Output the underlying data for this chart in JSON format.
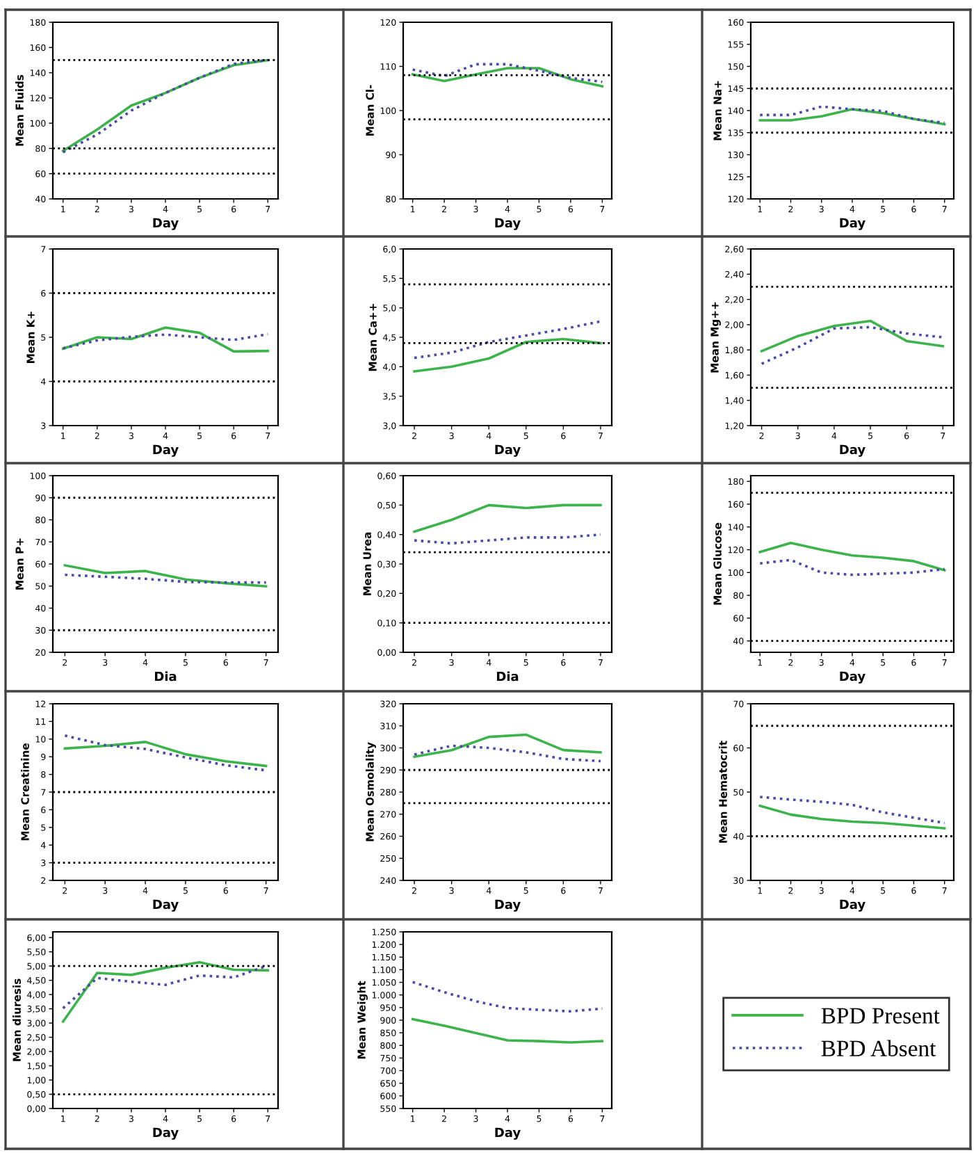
{
  "chart_data": [
    {
      "type": "line",
      "ylabel": "Mean Fluids",
      "xlabel": "Day",
      "x": [
        1,
        2,
        3,
        4,
        5,
        6,
        7
      ],
      "xlim": [
        0.7,
        7.3
      ],
      "xticks": [
        1,
        2,
        3,
        4,
        5,
        6,
        7
      ],
      "ylim": [
        40,
        180
      ],
      "yticks": [
        40,
        60,
        80,
        100,
        120,
        140,
        160,
        180
      ],
      "series": [
        {
          "name": "BPD Present",
          "color": "#3cb44b",
          "line_style": "solid",
          "values": [
            78,
            95,
            114,
            124,
            136,
            146,
            150
          ]
        },
        {
          "name": "BPD Absent",
          "color": "#4a4aa8",
          "line_style": "dotted",
          "values": [
            77,
            91,
            110,
            124,
            136,
            147,
            150
          ]
        }
      ],
      "ref_lines": [
        {
          "axis": "y",
          "value": 150,
          "line_style": "dotted",
          "color": "#000000"
        },
        {
          "axis": "y",
          "value": 80,
          "line_style": "dotted",
          "color": "#000000"
        },
        {
          "axis": "y",
          "value": 60,
          "line_style": "dotted",
          "color": "#000000"
        }
      ],
      "legend": "bottom right"
    },
    {
      "type": "line",
      "ylabel": "Mean Cl-",
      "xlabel": "Day",
      "x": [
        1,
        2,
        3,
        4,
        5,
        6,
        7
      ],
      "xlim": [
        0.7,
        7.3
      ],
      "xticks": [
        1,
        2,
        3,
        4,
        5,
        6,
        7
      ],
      "ylim": [
        80,
        120
      ],
      "yticks": [
        80,
        90,
        100,
        110,
        120
      ],
      "series": [
        {
          "color": "#3cb44b",
          "line_style": "solid",
          "values": [
            108.2,
            106.7,
            108.2,
            109.6,
            109.6,
            107.1,
            105.5
          ]
        },
        {
          "color": "#4a4aa8",
          "line_style": "dotted",
          "values": [
            109.3,
            107.8,
            110.5,
            110.5,
            109,
            107.4,
            106.5
          ]
        }
      ],
      "ref_lines": [
        {
          "axis": "y",
          "value": 108,
          "line_style": "dotted",
          "color": "#000000"
        },
        {
          "axis": "y",
          "value": 98,
          "line_style": "dotted",
          "color": "#000000"
        }
      ]
    },
    {
      "type": "line",
      "ylabel": "Mean Na+",
      "xlabel": "Day",
      "x": [
        1,
        2,
        3,
        4,
        5,
        6,
        7
      ],
      "xlim": [
        0.7,
        7.3
      ],
      "xticks": [
        1,
        2,
        3,
        4,
        5,
        6,
        7
      ],
      "ylim": [
        120,
        160
      ],
      "yticks": [
        120,
        125,
        130,
        135,
        140,
        145,
        150,
        155,
        160
      ],
      "series": [
        {
          "color": "#3cb44b",
          "line_style": "solid",
          "values": [
            137.8,
            137.8,
            138.7,
            140.3,
            139.4,
            138.1,
            136.9
          ]
        },
        {
          "color": "#4a4aa8",
          "line_style": "dotted",
          "values": [
            139,
            139,
            140.9,
            140.3,
            139.9,
            138.1,
            137.2
          ]
        }
      ],
      "ref_lines": [
        {
          "axis": "y",
          "value": 145,
          "line_style": "dotted",
          "color": "#000000"
        },
        {
          "axis": "y",
          "value": 135,
          "line_style": "dotted",
          "color": "#000000"
        }
      ]
    },
    {
      "type": "line",
      "ylabel": "Mean K+",
      "xlabel": "Day",
      "x": [
        1,
        2,
        3,
        4,
        5,
        6,
        7
      ],
      "xlim": [
        0.7,
        7.3
      ],
      "xticks": [
        1,
        2,
        3,
        4,
        5,
        6,
        7
      ],
      "ylim": [
        3,
        7
      ],
      "yticks": [
        3,
        4,
        5,
        6,
        7
      ],
      "series": [
        {
          "color": "#3cb44b",
          "line_style": "solid",
          "values": [
            4.74,
            5.0,
            4.96,
            5.22,
            5.1,
            4.68,
            4.69
          ]
        },
        {
          "color": "#4a4aa8",
          "line_style": "dotted",
          "values": [
            4.75,
            4.93,
            5.01,
            5.06,
            5.0,
            4.94,
            5.07
          ]
        }
      ],
      "ref_lines": [
        {
          "axis": "y",
          "value": 6,
          "line_style": "dotted",
          "color": "#000000"
        },
        {
          "axis": "y",
          "value": 4,
          "line_style": "dotted",
          "color": "#000000"
        }
      ]
    },
    {
      "type": "line",
      "ylabel": "Mean Ca++",
      "xlabel": "Day",
      "x": [
        2,
        3,
        4,
        5,
        6,
        7
      ],
      "xlim": [
        1.7,
        7.3
      ],
      "xticks": [
        2,
        3,
        4,
        5,
        6,
        7
      ],
      "ylim": [
        3,
        6
      ],
      "yticks": [
        {
          "value": 3,
          "label": "3,0"
        },
        {
          "value": 3.5,
          "label": "3,5"
        },
        {
          "value": 4,
          "label": "4,0"
        },
        {
          "value": 4.5,
          "label": "4,5"
        },
        {
          "value": 5,
          "label": "5,0"
        },
        {
          "value": 5.5,
          "label": "5,5"
        },
        {
          "value": 6,
          "label": "6,0"
        }
      ],
      "series": [
        {
          "color": "#3cb44b",
          "line_style": "solid",
          "values": [
            3.92,
            4.0,
            4.14,
            4.42,
            4.47,
            4.4
          ]
        },
        {
          "color": "#4a4aa8",
          "line_style": "dotted",
          "values": [
            4.15,
            4.24,
            4.42,
            4.53,
            4.64,
            4.77
          ]
        }
      ],
      "ref_lines": [
        {
          "axis": "y",
          "value": 5.4,
          "line_style": "dotted",
          "color": "#000000"
        },
        {
          "axis": "y",
          "value": 4.4,
          "line_style": "dotted",
          "color": "#000000"
        }
      ]
    },
    {
      "type": "line",
      "ylabel": "Mean Mg++",
      "xlabel": "Day",
      "x": [
        2,
        3,
        4,
        5,
        6,
        7
      ],
      "xlim": [
        1.7,
        7.3
      ],
      "xticks": [
        2,
        3,
        4,
        5,
        6,
        7
      ],
      "ylim": [
        1.2,
        2.6
      ],
      "yticks": [
        {
          "value": 1.2,
          "label": "1,20"
        },
        {
          "value": 1.4,
          "label": "1,40"
        },
        {
          "value": 1.6,
          "label": "1,60"
        },
        {
          "value": 1.8,
          "label": "1,80"
        },
        {
          "value": 2.0,
          "label": "2,00"
        },
        {
          "value": 2.2,
          "label": "2,20"
        },
        {
          "value": 2.4,
          "label": "2,40"
        },
        {
          "value": 2.6,
          "label": "2,60"
        }
      ],
      "series": [
        {
          "color": "#3cb44b",
          "line_style": "solid",
          "values": [
            1.79,
            1.91,
            1.99,
            2.03,
            1.87,
            1.83
          ]
        },
        {
          "color": "#4a4aa8",
          "line_style": "dotted",
          "values": [
            1.69,
            1.82,
            1.97,
            1.98,
            1.93,
            1.9
          ]
        }
      ],
      "ref_lines": [
        {
          "axis": "y",
          "value": 2.3,
          "line_style": "dotted",
          "color": "#000000"
        },
        {
          "axis": "y",
          "value": 1.5,
          "line_style": "dotted",
          "color": "#000000"
        }
      ]
    },
    {
      "type": "line",
      "ylabel": "Mean P+",
      "xlabel": "Dia",
      "x": [
        2,
        3,
        4,
        5,
        6,
        7
      ],
      "xlim": [
        1.7,
        7.3
      ],
      "xticks": [
        2,
        3,
        4,
        5,
        6,
        7
      ],
      "ylim": [
        20,
        100
      ],
      "yticks": [
        20,
        30,
        40,
        50,
        60,
        70,
        80,
        90,
        100
      ],
      "series": [
        {
          "color": "#3cb44b",
          "line_style": "solid",
          "values": [
            59.4,
            55.9,
            56.8,
            53.0,
            51.3,
            49.9
          ]
        },
        {
          "color": "#4a4aa8",
          "line_style": "dotted",
          "values": [
            55.1,
            54.2,
            53.3,
            51.9,
            51.6,
            51.6
          ]
        }
      ],
      "ref_lines": [
        {
          "axis": "y",
          "value": 90,
          "line_style": "dotted",
          "color": "#000000"
        },
        {
          "axis": "y",
          "value": 30,
          "line_style": "dotted",
          "color": "#000000"
        }
      ]
    },
    {
      "type": "line",
      "ylabel": "Mean Urea",
      "xlabel": "Dia",
      "x": [
        2,
        3,
        4,
        5,
        6,
        7
      ],
      "xlim": [
        1.7,
        7.3
      ],
      "xticks": [
        2,
        3,
        4,
        5,
        6,
        7
      ],
      "ylim": [
        0,
        0.6
      ],
      "yticks": [
        {
          "value": 0,
          "label": "0,00"
        },
        {
          "value": 0.1,
          "label": "0,10"
        },
        {
          "value": 0.2,
          "label": "0,20"
        },
        {
          "value": 0.3,
          "label": "0,30"
        },
        {
          "value": 0.4,
          "label": "0,40"
        },
        {
          "value": 0.5,
          "label": "0,50"
        },
        {
          "value": 0.6,
          "label": "0,60"
        }
      ],
      "series": [
        {
          "color": "#3cb44b",
          "line_style": "solid",
          "values": [
            0.41,
            0.45,
            0.5,
            0.49,
            0.5,
            0.5
          ]
        },
        {
          "color": "#4a4aa8",
          "line_style": "dotted",
          "values": [
            0.38,
            0.37,
            0.38,
            0.39,
            0.39,
            0.4
          ]
        }
      ],
      "ref_lines": [
        {
          "axis": "y",
          "value": 0.34,
          "line_style": "dotted",
          "color": "#000000"
        },
        {
          "axis": "y",
          "value": 0.1,
          "line_style": "dotted",
          "color": "#000000"
        }
      ]
    },
    {
      "type": "line",
      "ylabel": "Mean Glucose",
      "xlabel": "Day",
      "x": [
        1,
        2,
        3,
        4,
        5,
        6,
        7
      ],
      "xlim": [
        0.7,
        7.3
      ],
      "xticks": [
        1,
        2,
        3,
        4,
        5,
        6,
        7
      ],
      "ylim": [
        30,
        185
      ],
      "yticks": [
        40,
        60,
        80,
        100,
        120,
        140,
        160,
        180
      ],
      "series": [
        {
          "color": "#3cb44b",
          "line_style": "solid",
          "values": [
            118,
            126,
            120,
            115,
            113,
            110,
            102
          ]
        },
        {
          "color": "#4a4aa8",
          "line_style": "dotted",
          "values": [
            108,
            111,
            100,
            98,
            99,
            100,
            103
          ]
        }
      ],
      "ref_lines": [
        {
          "axis": "y",
          "value": 170,
          "line_style": "dotted",
          "color": "#000000"
        },
        {
          "axis": "y",
          "value": 40,
          "line_style": "dotted",
          "color": "#000000"
        }
      ]
    },
    {
      "type": "line",
      "ylabel": "Mean Creatinine",
      "xlabel": "Day",
      "x": [
        2,
        3,
        4,
        5,
        6,
        7
      ],
      "xlim": [
        1.7,
        7.3
      ],
      "xticks": [
        2,
        3,
        4,
        5,
        6,
        7
      ],
      "ylim": [
        2,
        12
      ],
      "yticks": [
        2,
        3,
        4,
        5,
        6,
        7,
        8,
        9,
        10,
        11,
        12
      ],
      "series": [
        {
          "color": "#3cb44b",
          "line_style": "solid",
          "values": [
            9.47,
            9.62,
            9.84,
            9.14,
            8.74,
            8.48
          ]
        },
        {
          "color": "#4a4aa8",
          "line_style": "dotted",
          "values": [
            10.2,
            9.66,
            9.44,
            8.96,
            8.52,
            8.23
          ]
        }
      ],
      "ref_lines": [
        {
          "axis": "y",
          "value": 7,
          "line_style": "dotted",
          "color": "#000000"
        },
        {
          "axis": "y",
          "value": 3,
          "line_style": "dotted",
          "color": "#000000"
        }
      ]
    },
    {
      "type": "line",
      "ylabel": "Mean Osmolality",
      "xlabel": "Day",
      "x": [
        2,
        3,
        4,
        5,
        6,
        7
      ],
      "xlim": [
        1.7,
        7.3
      ],
      "xticks": [
        2,
        3,
        4,
        5,
        6,
        7
      ],
      "ylim": [
        240,
        320
      ],
      "yticks": [
        240,
        250,
        260,
        270,
        280,
        290,
        300,
        310,
        320
      ],
      "series": [
        {
          "color": "#3cb44b",
          "line_style": "solid",
          "values": [
            296,
            299,
            305,
            306,
            299,
            298
          ]
        },
        {
          "color": "#4a4aa8",
          "line_style": "dotted",
          "values": [
            297,
            301,
            300,
            298,
            295,
            294
          ]
        }
      ],
      "ref_lines": [
        {
          "axis": "y",
          "value": 290,
          "line_style": "dotted",
          "color": "#000000"
        },
        {
          "axis": "y",
          "value": 275,
          "line_style": "dotted",
          "color": "#000000"
        }
      ]
    },
    {
      "type": "line",
      "ylabel": "Mean Hematocrit",
      "xlabel": "Day",
      "x": [
        1,
        2,
        3,
        4,
        5,
        6,
        7
      ],
      "xlim": [
        0.7,
        7.3
      ],
      "xticks": [
        1,
        2,
        3,
        4,
        5,
        6,
        7
      ],
      "ylim": [
        30,
        70
      ],
      "yticks": [
        30,
        40,
        50,
        60,
        70
      ],
      "series": [
        {
          "color": "#3cb44b",
          "line_style": "solid",
          "values": [
            46.9,
            44.9,
            43.9,
            43.3,
            43.0,
            42.4,
            41.8
          ]
        },
        {
          "color": "#4a4aa8",
          "line_style": "dotted",
          "values": [
            48.9,
            48.3,
            47.8,
            47.1,
            45.4,
            44.2,
            43.0
          ]
        }
      ],
      "ref_lines": [
        {
          "axis": "y",
          "value": 65,
          "line_style": "dotted",
          "color": "#000000"
        },
        {
          "axis": "y",
          "value": 40,
          "line_style": "dotted",
          "color": "#000000"
        }
      ]
    },
    {
      "type": "line",
      "ylabel": "Mean diuresis",
      "xlabel": "Day",
      "x": [
        1,
        2,
        3,
        4,
        5,
        6,
        7
      ],
      "xlim": [
        0.7,
        7.3
      ],
      "xticks": [
        1,
        2,
        3,
        4,
        5,
        6,
        7
      ],
      "ylim": [
        0,
        6.2
      ],
      "yticks": [
        {
          "value": 0,
          "label": "0,00"
        },
        {
          "value": 0.5,
          "label": "0,50"
        },
        {
          "value": 1,
          "label": "1,00"
        },
        {
          "value": 1.5,
          "label": "1,50"
        },
        {
          "value": 2,
          "label": "2,00"
        },
        {
          "value": 2.5,
          "label": "2,50"
        },
        {
          "value": 3,
          "label": "3,00"
        },
        {
          "value": 3.5,
          "label": "3,50"
        },
        {
          "value": 4,
          "label": "4,00"
        },
        {
          "value": 4.5,
          "label": "4,50"
        },
        {
          "value": 5,
          "label": "5,00"
        },
        {
          "value": 5.5,
          "label": "5,50"
        },
        {
          "value": 6,
          "label": "6,00"
        }
      ],
      "series": [
        {
          "color": "#3cb44b",
          "line_style": "solid",
          "values": [
            3.05,
            4.76,
            4.69,
            4.94,
            5.13,
            4.87,
            4.85
          ]
        },
        {
          "color": "#4a4aa8",
          "line_style": "dotted",
          "values": [
            3.52,
            4.58,
            4.45,
            4.34,
            4.67,
            4.6,
            5.02
          ]
        }
      ],
      "ref_lines": [
        {
          "axis": "y",
          "value": 5,
          "line_style": "dotted",
          "color": "#000000"
        },
        {
          "axis": "y",
          "value": 0.5,
          "line_style": "dotted",
          "color": "#000000"
        }
      ]
    },
    {
      "type": "line",
      "ylabel": "Mean Weight",
      "xlabel": "Day",
      "x": [
        1,
        2,
        3,
        4,
        5,
        6,
        7
      ],
      "xlim": [
        0.7,
        7.3
      ],
      "xticks": [
        1,
        2,
        3,
        4,
        5,
        6,
        7
      ],
      "ylim": [
        550,
        1250
      ],
      "yticks": [
        {
          "value": 550,
          "label": "550"
        },
        {
          "value": 600,
          "label": "600"
        },
        {
          "value": 650,
          "label": "650"
        },
        {
          "value": 700,
          "label": "700"
        },
        {
          "value": 750,
          "label": "750"
        },
        {
          "value": 800,
          "label": "800"
        },
        {
          "value": 850,
          "label": "850"
        },
        {
          "value": 900,
          "label": "900"
        },
        {
          "value": 950,
          "label": "950"
        },
        {
          "value": 1000,
          "label": "1.000"
        },
        {
          "value": 1050,
          "label": "1.050"
        },
        {
          "value": 1100,
          "label": "1.100"
        },
        {
          "value": 1150,
          "label": "1.150"
        },
        {
          "value": 1200,
          "label": "1.200"
        },
        {
          "value": 1250,
          "label": "1.250"
        }
      ],
      "series": [
        {
          "color": "#3cb44b",
          "line_style": "solid",
          "values": [
            904,
            878,
            849,
            820,
            817,
            812,
            817
          ]
        },
        {
          "color": "#4a4aa8",
          "line_style": "dotted",
          "values": [
            1051,
            1011,
            975,
            948,
            941,
            935,
            946
          ]
        }
      ]
    }
  ]
}
